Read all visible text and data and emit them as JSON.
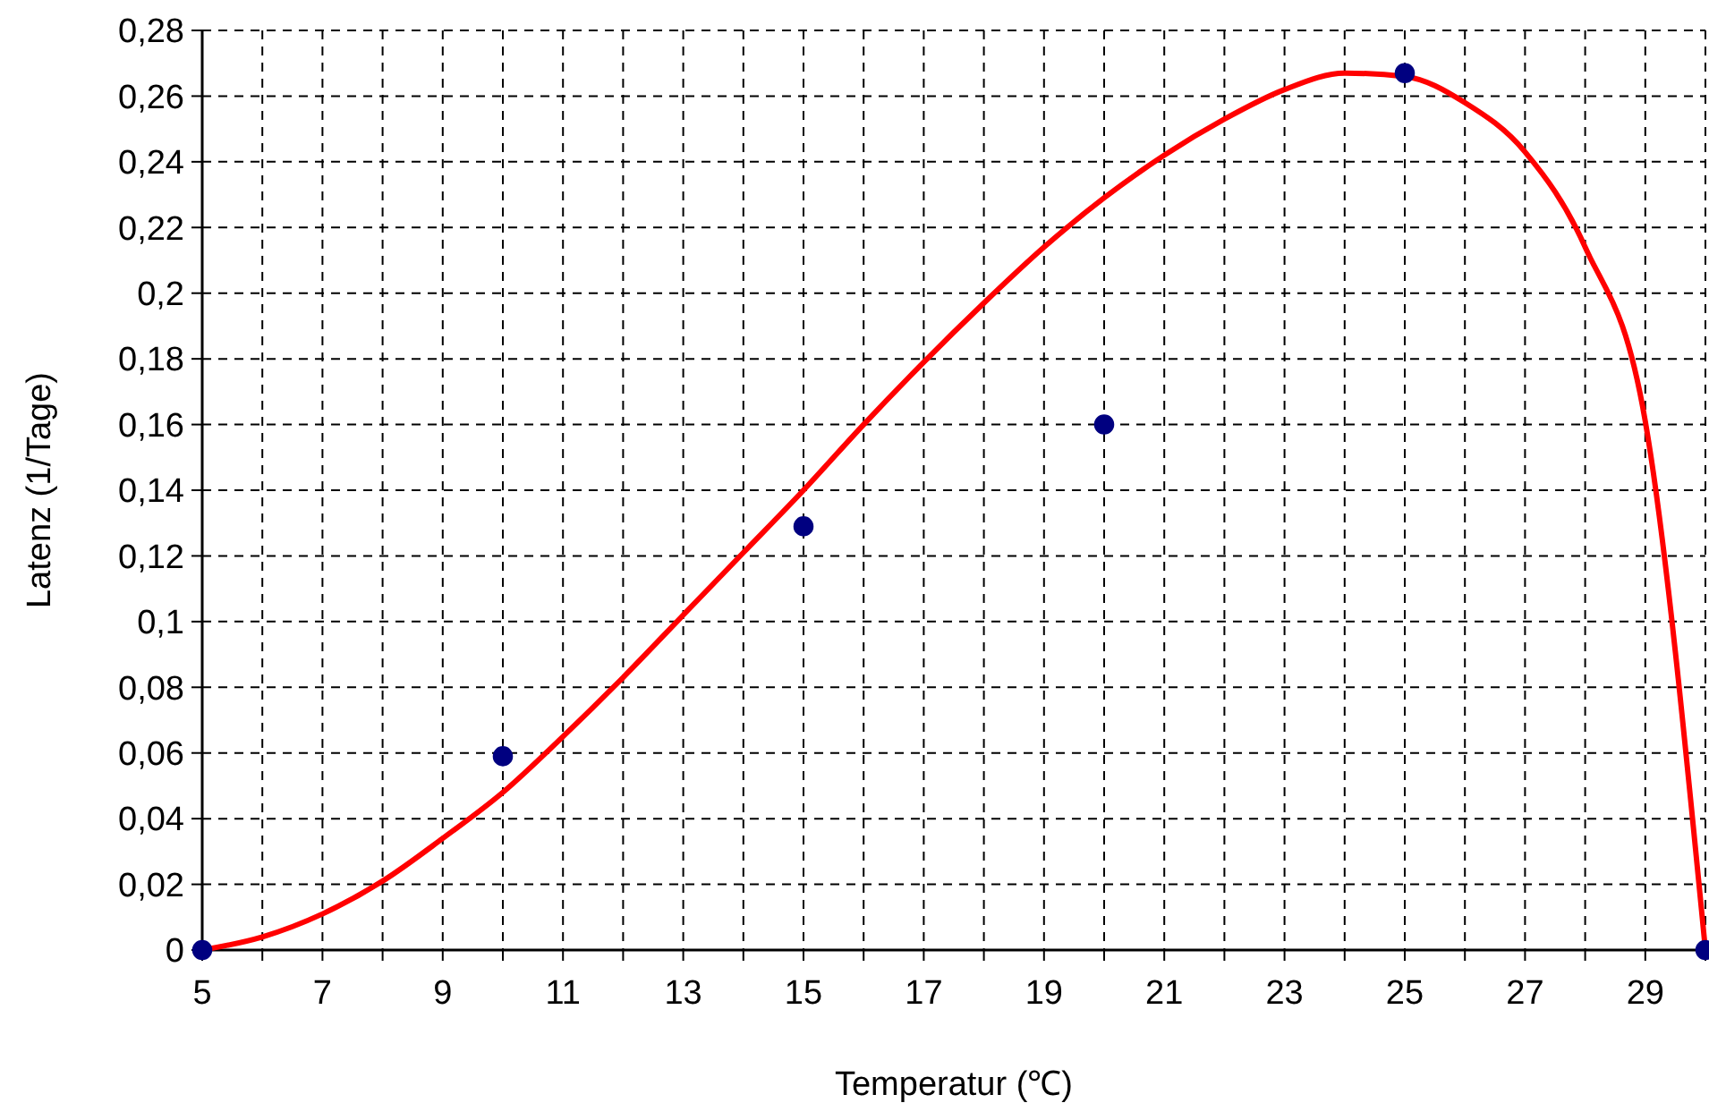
{
  "chart_data": {
    "type": "line",
    "xlabel": "Temperatur (℃)",
    "ylabel": "Latenz (1/Tage)",
    "xlim": [
      5,
      30
    ],
    "ylim": [
      0,
      0.28
    ],
    "xticks": [
      5,
      {
        "value": 6,
        "label": null
      },
      7,
      {
        "value": 8,
        "label": null
      },
      9,
      {
        "value": 10,
        "label": null
      },
      11,
      {
        "value": 12,
        "label": null
      },
      13,
      {
        "value": 14,
        "label": null
      },
      15,
      {
        "value": 16,
        "label": null
      },
      17,
      {
        "value": 18,
        "label": null
      },
      19,
      {
        "value": 20,
        "label": null
      },
      21,
      {
        "value": 22,
        "label": null
      },
      23,
      {
        "value": 24,
        "label": null
      },
      25,
      {
        "value": 26,
        "label": null
      },
      27,
      {
        "value": 28,
        "label": null
      },
      29,
      {
        "value": 30,
        "label": null
      }
    ],
    "yticks": [
      {
        "value": 0,
        "label": "0"
      },
      {
        "value": 0.02,
        "label": "0,02"
      },
      {
        "value": 0.04,
        "label": "0,04"
      },
      {
        "value": 0.06,
        "label": "0,06"
      },
      {
        "value": 0.08,
        "label": "0,08"
      },
      {
        "value": 0.1,
        "label": "0,1"
      },
      {
        "value": 0.12,
        "label": "0,12"
      },
      {
        "value": 0.14,
        "label": "0,14"
      },
      {
        "value": 0.16,
        "label": "0,16"
      },
      {
        "value": 0.18,
        "label": "0,18"
      },
      {
        "value": 0.2,
        "label": "0,2"
      },
      {
        "value": 0.22,
        "label": "0,22"
      },
      {
        "value": 0.24,
        "label": "0,24"
      },
      {
        "value": 0.26,
        "label": "0,26"
      },
      {
        "value": 0.28,
        "label": "0,28"
      }
    ],
    "grid": true,
    "line_style": "dashed",
    "series": [
      {
        "color": "#ff0000",
        "marker": "none",
        "line_style": "solid",
        "x": [
          5,
          6,
          7,
          8,
          9,
          10,
          11,
          12,
          13,
          14,
          15,
          16,
          17,
          18,
          19,
          20,
          21,
          22,
          23,
          24,
          25,
          26,
          27,
          28,
          29,
          30
        ],
        "values": [
          0,
          0.004,
          0.011,
          0.021,
          0.034,
          0.048,
          0.065,
          0.083,
          0.102,
          0.121,
          0.14,
          0.16,
          0.179,
          0.197,
          0.214,
          0.229,
          0.242,
          0.253,
          0.262,
          0.267,
          0.266,
          0.258,
          0.243,
          0.214,
          0.161,
          0
        ]
      },
      {
        "type": "scatter",
        "color": "#000080",
        "marker": "circle",
        "x": [
          5,
          10,
          15,
          20,
          25,
          30
        ],
        "values": [
          0,
          0.059,
          0.129,
          0.16,
          0.267,
          0
        ]
      }
    ]
  }
}
